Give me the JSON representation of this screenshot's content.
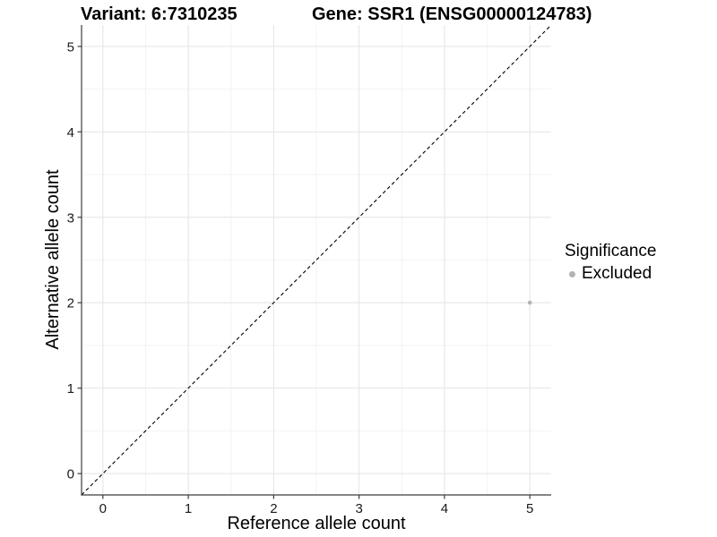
{
  "header": {
    "variant_title": "Variant: 6:7310235",
    "gene_title": "Gene: SSR1 (ENSG00000124783)"
  },
  "chart_data": {
    "type": "scatter",
    "xlabel": "Reference allele count",
    "ylabel": "Alternative allele count",
    "xlim": [
      -0.25,
      5.25
    ],
    "ylim": [
      -0.25,
      5.25
    ],
    "xticks": [
      0,
      1,
      2,
      3,
      4,
      5
    ],
    "yticks": [
      0,
      1,
      2,
      3,
      4,
      5
    ],
    "x_minor_breaks": [
      0.5,
      1.5,
      2.5,
      3.5,
      4.5
    ],
    "y_minor_breaks": [
      0.5,
      1.5,
      2.5,
      3.5,
      4.5
    ],
    "grid": {
      "major_color": "#e4e4e4",
      "minor_color": "#f3f3f3"
    },
    "axis": {
      "line_color": "#3c3c3c",
      "tick_color": "#3c3c3c",
      "tick_label_color": "#1a1a1a"
    },
    "identity_line": {
      "color": "#000000",
      "dash": "4 3"
    },
    "points": [
      {
        "x": 5,
        "y": 2,
        "series": "Excluded",
        "color": "#b3b3b3",
        "radius": 2.3
      }
    ],
    "legend": {
      "title": "Significance",
      "position": "right",
      "items": [
        {
          "label": "Excluded",
          "color": "#b3b3b3"
        }
      ]
    }
  }
}
